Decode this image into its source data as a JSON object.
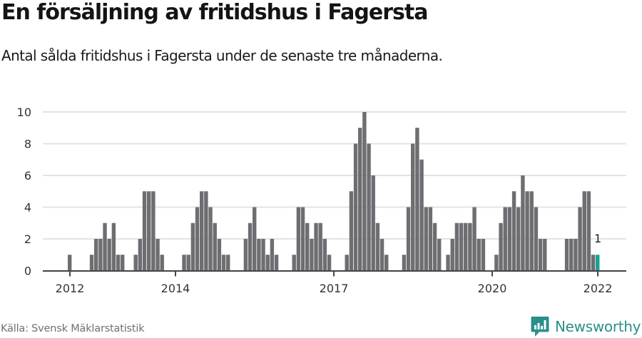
{
  "header": {
    "title": "En försäljning av fritidshus i Fagersta",
    "subtitle": "Antal sålda fritidshus i Fagersta under de senaste tre månaderna."
  },
  "footer": {
    "source": "Källa: Svensk Mäklarstatistik",
    "brand": "Newsworthy",
    "brand_icon": "bar-chart-speech-bubble-icon"
  },
  "colors": {
    "bar": "#6e6d72",
    "highlight": "#12a594",
    "grid": "#e3e3e3",
    "axis": "#444444",
    "brand": "#2a8f8a"
  },
  "chart_data": {
    "type": "bar",
    "title": "En försäljning av fritidshus i Fagersta",
    "subtitle": "Antal sålda fritidshus i Fagersta under de senaste tre månaderna.",
    "xlabel": "",
    "ylabel": "",
    "ylim": [
      0,
      10
    ],
    "yticks": [
      0,
      2,
      4,
      6,
      8,
      10
    ],
    "xticks": [
      "2012",
      "2014",
      "2017",
      "2020",
      "2022"
    ],
    "xtick_month_index": [
      0,
      24,
      60,
      96,
      120
    ],
    "grid": true,
    "legend": null,
    "start_month": "2012-01",
    "end_month": "2022-01",
    "highlight_index": 120,
    "highlight_label": "1",
    "values": [
      1,
      0,
      0,
      0,
      0,
      1,
      2,
      2,
      3,
      2,
      3,
      1,
      1,
      0,
      0,
      1,
      2,
      5,
      5,
      5,
      2,
      1,
      0,
      0,
      0,
      0,
      1,
      1,
      3,
      4,
      5,
      5,
      4,
      3,
      2,
      1,
      1,
      0,
      0,
      0,
      2,
      3,
      4,
      2,
      2,
      1,
      2,
      1,
      0,
      0,
      0,
      1,
      4,
      4,
      3,
      2,
      3,
      3,
      2,
      1,
      0,
      0,
      0,
      1,
      5,
      8,
      9,
      10,
      8,
      6,
      3,
      2,
      1,
      0,
      0,
      0,
      1,
      4,
      8,
      9,
      7,
      4,
      4,
      3,
      2,
      0,
      1,
      2,
      3,
      3,
      3,
      3,
      4,
      2,
      2,
      0,
      0,
      1,
      3,
      4,
      4,
      5,
      4,
      6,
      5,
      5,
      4,
      2,
      2,
      0,
      0,
      0,
      0,
      2,
      2,
      2,
      4,
      5,
      5,
      1,
      1
    ]
  }
}
